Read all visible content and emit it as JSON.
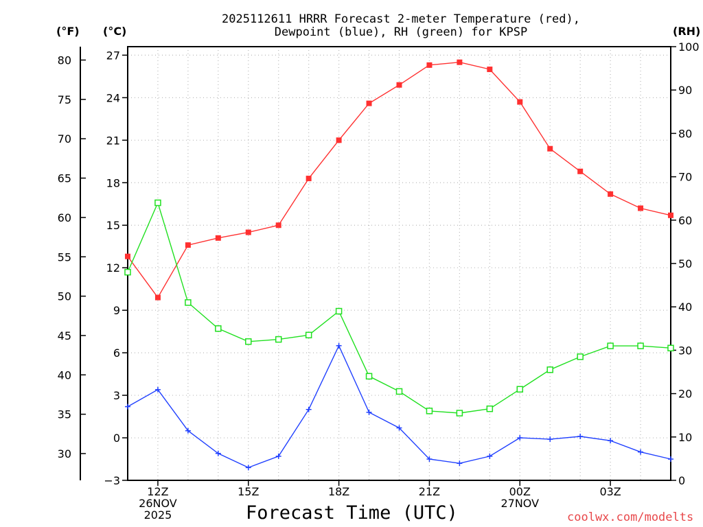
{
  "chart_data": {
    "type": "line",
    "title_line1": "2025112611 HRRR Forecast 2-meter Temperature (red),",
    "title_line2": "Dewpoint (blue), RH (green) for KPSP",
    "xlabel": "Forecast Time (UTC)",
    "left_axis_f_label": "(°F)",
    "left_axis_c_label": "(°C)",
    "right_axis_label": "(RH)",
    "credit": "coolwx.com/modelts",
    "grid": true,
    "x_hours": [
      11,
      12,
      13,
      14,
      15,
      16,
      17,
      18,
      19,
      20,
      21,
      22,
      23,
      24,
      25,
      26,
      27,
      28,
      29
    ],
    "xlim": [
      11,
      29
    ],
    "ylim_c": [
      -3,
      27.6
    ],
    "ylim_f": [
      26.6,
      81.7
    ],
    "ylim_rh": [
      0,
      100
    ],
    "c_ticks": [
      27,
      24,
      21,
      18,
      15,
      12,
      9,
      6,
      3,
      0,
      -3
    ],
    "f_ticks": [
      80,
      75,
      70,
      65,
      60,
      55,
      50,
      45,
      40,
      35,
      30
    ],
    "rh_ticks": [
      100,
      90,
      80,
      70,
      60,
      50,
      40,
      30,
      20,
      10,
      0
    ],
    "x_ticks": [
      {
        "hour": 12,
        "lines": [
          "12Z",
          "26NOV",
          "2025"
        ]
      },
      {
        "hour": 15,
        "lines": [
          "15Z"
        ]
      },
      {
        "hour": 18,
        "lines": [
          "18Z"
        ]
      },
      {
        "hour": 21,
        "lines": [
          "21Z"
        ]
      },
      {
        "hour": 24,
        "lines": [
          "00Z",
          "27NOV"
        ]
      },
      {
        "hour": 27,
        "lines": [
          "03Z"
        ]
      }
    ],
    "series": [
      {
        "name": "Temperature",
        "axis": "C",
        "color": "#ff3030",
        "marker": "filled-square",
        "values": [
          12.8,
          9.9,
          13.6,
          14.1,
          14.5,
          15.0,
          18.3,
          21.0,
          23.6,
          24.9,
          26.3,
          26.5,
          26.0,
          23.7,
          20.4,
          18.8,
          17.2,
          16.2,
          15.7
        ]
      },
      {
        "name": "Dewpoint",
        "axis": "C",
        "color": "#2040ff",
        "marker": "plus",
        "values": [
          2.2,
          3.4,
          0.5,
          -1.1,
          -2.1,
          -1.3,
          2.0,
          6.5,
          1.8,
          0.7,
          -1.5,
          -1.8,
          -1.3,
          0.0,
          -0.1,
          0.1,
          -0.2,
          -1.0,
          -1.5
        ]
      },
      {
        "name": "RH",
        "axis": "RH",
        "color": "#20e020",
        "marker": "open-square",
        "values": [
          48,
          64,
          41,
          35,
          32,
          32.5,
          33.5,
          39,
          24,
          20.5,
          16,
          15.5,
          16.5,
          21,
          25.5,
          28.5,
          31,
          31,
          30.5
        ]
      }
    ]
  }
}
